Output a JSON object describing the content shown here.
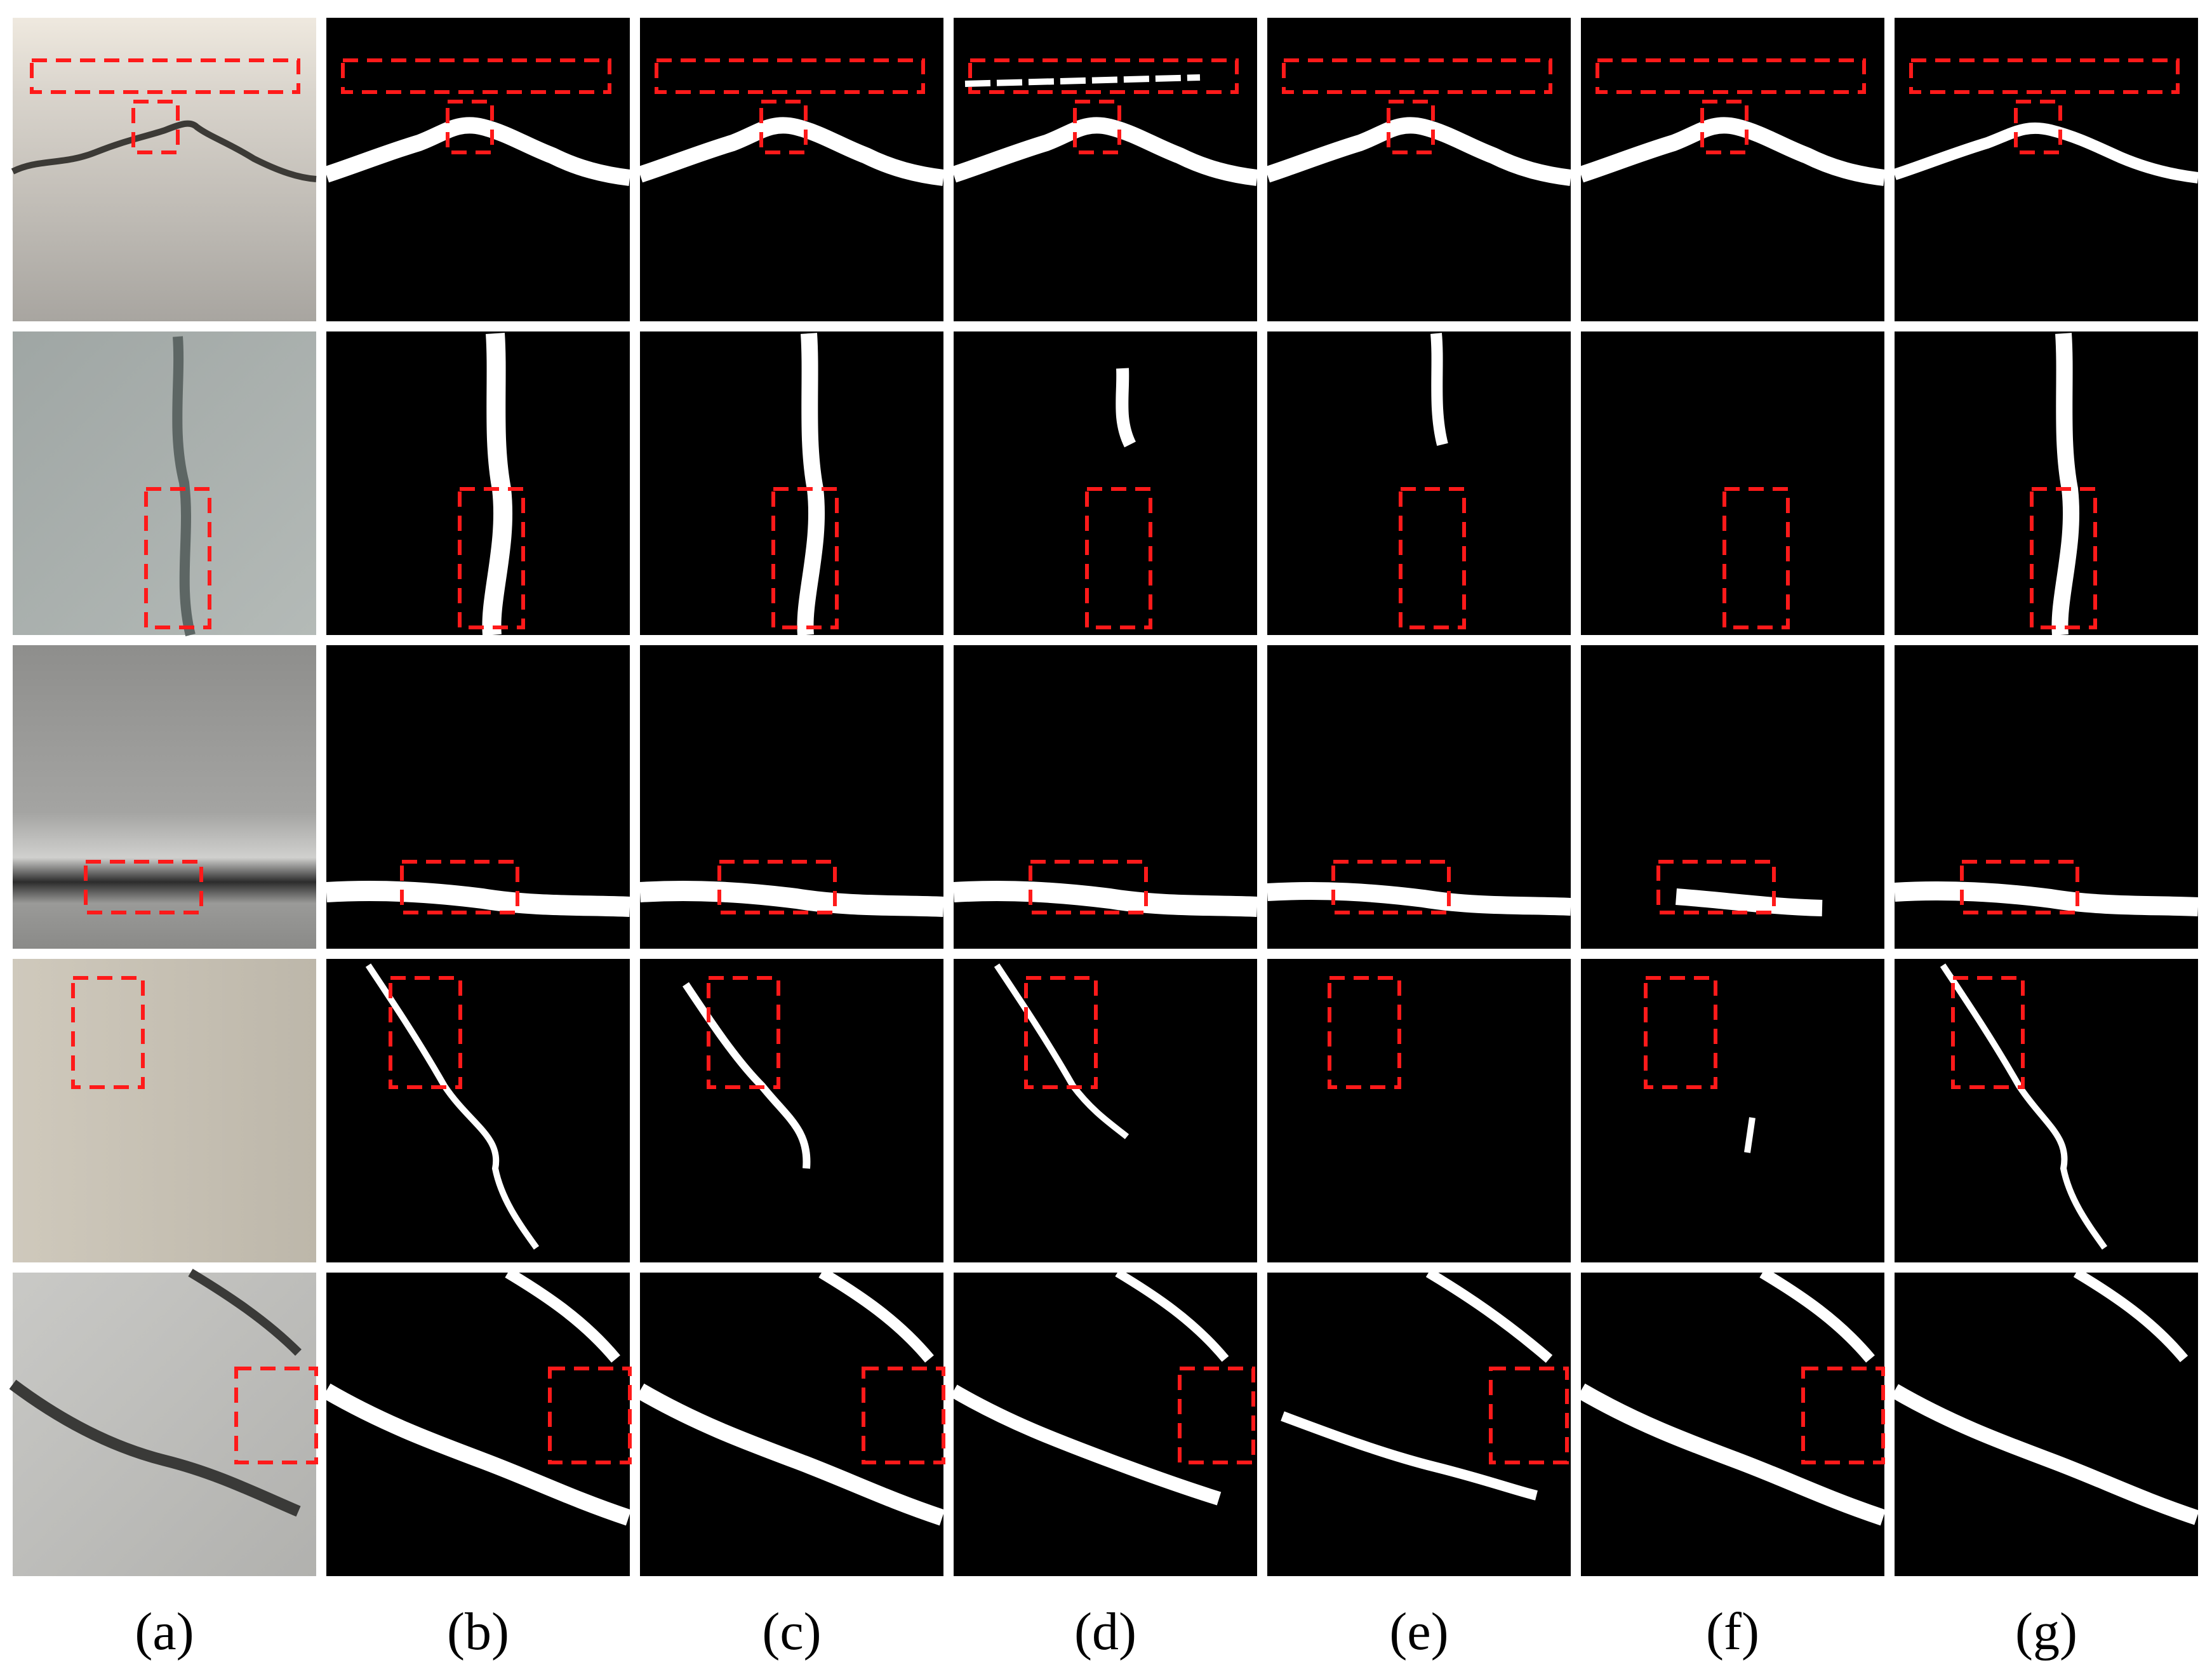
{
  "figure": {
    "column_labels": [
      "(a)",
      "(b)",
      "(c)",
      "(d)",
      "(e)",
      "(f)",
      "(g)"
    ],
    "row_count": 5,
    "highlight_color": "#ff1a1a",
    "mask_background": "#000000",
    "mask_foreground": "#ffffff"
  }
}
